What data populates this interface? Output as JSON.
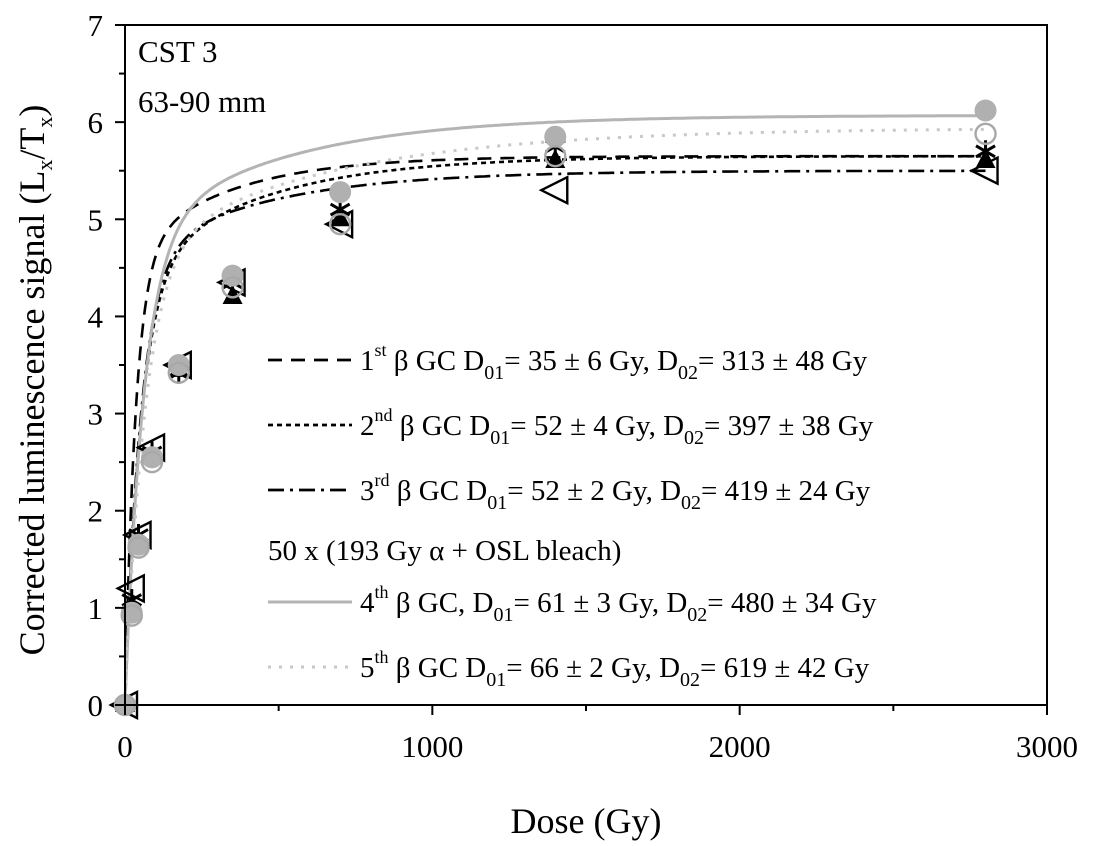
{
  "chart_data": {
    "type": "scatter",
    "panel_label": "CST 3",
    "panel_sublabel": "63-90 mm",
    "xlabel": "Dose (Gy)",
    "ylabel": "Corrected luminescence signal (L",
    "ylabel_sub1": "x",
    "ylabel_mid": "/T",
    "ylabel_sub2": "x",
    "ylabel_end": ")",
    "xlim": [
      0,
      3000
    ],
    "ylim": [
      0,
      7
    ],
    "xticks": [
      "0",
      "1000",
      "2000",
      "3000"
    ],
    "yticks": [
      "0",
      "1",
      "2",
      "3",
      "4",
      "5",
      "6",
      "7"
    ],
    "x": [
      0,
      22,
      44,
      88,
      175,
      350,
      700,
      1400,
      2800
    ],
    "series": [
      {
        "name": "1st β GC D01= 35 ± 6 Gy, D02= 313 ± 48 Gy",
        "values": [
          0.0,
          1.08,
          1.75,
          2.6,
          3.42,
          4.35,
          5.1,
          5.75,
          5.7
        ],
        "fit": {
          "A1": 4.6,
          "D1": 35,
          "A2": 1.05,
          "D2": 313
        },
        "color": "#000000",
        "dash": "14,9"
      },
      {
        "name": "2nd β GC D01= 52 ± 4 Gy, D02= 397 ± 38 Gy",
        "values": [
          0.0,
          1.0,
          1.68,
          2.55,
          3.45,
          4.2,
          5.0,
          5.6,
          5.6
        ],
        "fit": {
          "A1": 4.35,
          "D1": 52,
          "A2": 1.3,
          "D2": 397
        },
        "color": "#000000",
        "dash": "5,4"
      },
      {
        "name": "3rd β GC D01= 52 ± 2 Gy, D02= 419 ± 24 Gy",
        "values": [
          0.0,
          1.2,
          1.75,
          2.65,
          3.5,
          4.35,
          4.95,
          5.3,
          5.5
        ],
        "fit": {
          "A1": 4.55,
          "D1": 52,
          "A2": 0.95,
          "D2": 419
        },
        "color": "#000000",
        "dash": "16,6,3,6"
      },
      {
        "name": "4th β GC, D01= 61 ± 3 Gy, D02= 480 ± 34 Gy",
        "values": [
          0.0,
          0.95,
          1.65,
          2.55,
          3.5,
          4.42,
          5.28,
          5.85,
          6.12
        ],
        "fit": {
          "A1": 4.8,
          "D1": 61,
          "A2": 1.27,
          "D2": 480
        },
        "color": "#b4b4b4",
        "dash": ""
      },
      {
        "name": "5th β GC D01= 66 ± 2 Gy, D02= 619 ± 42 Gy",
        "values": [
          0.0,
          0.92,
          1.62,
          2.5,
          3.42,
          4.3,
          4.95,
          5.65,
          5.88
        ],
        "fit": {
          "A1": 4.62,
          "D1": 66,
          "A2": 1.32,
          "D2": 619
        },
        "color": "#c8c8c8",
        "dash": "3,8"
      }
    ],
    "legend": {
      "placement": "lower-right",
      "intro_line": "50 x (193 Gy α + OSL bleach)",
      "entries": [
        {
          "sup": "st",
          "rest": " β GC D",
          "sub1": "01",
          "mid": "= 35 ± 6 Gy, D",
          "sub2": "02",
          "end": "= 313 ± 48 Gy"
        },
        {
          "sup": "nd",
          "rest": " β GC D",
          "sub1": "01",
          "mid": "= 52 ± 4 Gy, D",
          "sub2": "02",
          "end": "= 397 ± 38 Gy"
        },
        {
          "sup": "rd",
          "rest": " β GC D",
          "sub1": "01",
          "mid": "= 52 ± 2 Gy, D",
          "sub2": "02",
          "end": "= 419 ± 24 Gy"
        },
        {
          "sup": "th",
          "rest": " β GC, D",
          "sub1": "01",
          "mid": "= 61 ± 3 Gy, D",
          "sub2": "02",
          "end": "= 480 ± 34 Gy"
        },
        {
          "sup": "th",
          "rest": " β GC D",
          "sub1": "01",
          "mid": "= 66 ± 2 Gy, D",
          "sub2": "02",
          "end": "= 619 ± 42 Gy"
        }
      ],
      "ordinals": [
        "1",
        "2",
        "3",
        "4",
        "5"
      ]
    },
    "grid": false
  }
}
